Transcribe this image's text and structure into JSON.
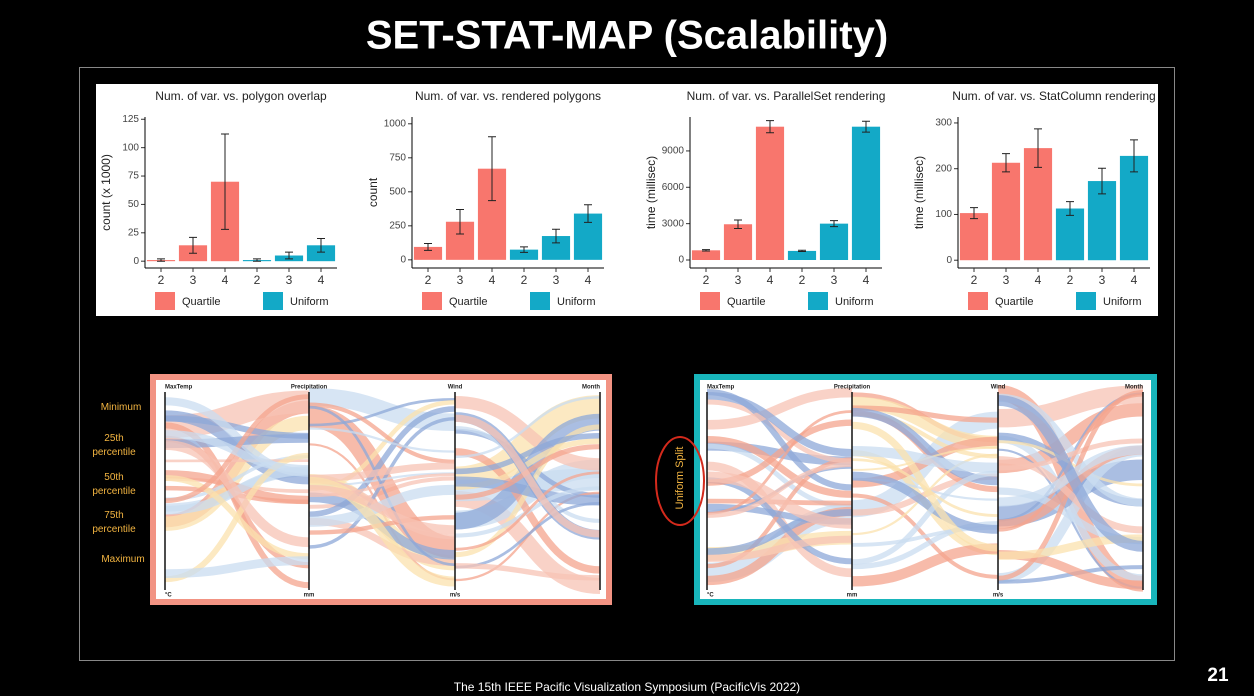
{
  "slide": {
    "title": "SET-STAT-MAP (Scalability)",
    "footer": "The 15th IEEE Pacific Visualization Symposium (PacificVis 2022)",
    "page_number": 21
  },
  "chart_data": [
    {
      "type": "bar",
      "title": "Num. of var. vs. polygon overlap",
      "y_label": "count (x 1000)",
      "categories": [
        "2",
        "3",
        "4"
      ],
      "series": [
        {
          "name": "Quartile",
          "color": "#f8766d",
          "values": [
            1,
            14,
            70
          ],
          "errors": [
            1,
            7,
            42
          ]
        },
        {
          "name": "Uniform",
          "color": "#13a9c7",
          "values": [
            1,
            5,
            14
          ],
          "errors": [
            1,
            3,
            6
          ]
        }
      ],
      "ylim": [
        -6,
        127
      ],
      "yticks": [
        0,
        25,
        50,
        75,
        100,
        125
      ]
    },
    {
      "type": "bar",
      "title": "Num. of var. vs. rendered polygons",
      "y_label": "count",
      "categories": [
        "2",
        "3",
        "4"
      ],
      "series": [
        {
          "name": "Quartile",
          "color": "#f8766d",
          "values": [
            95,
            280,
            670
          ],
          "errors": [
            25,
            90,
            235
          ]
        },
        {
          "name": "Uniform",
          "color": "#13a9c7",
          "values": [
            75,
            175,
            340
          ],
          "errors": [
            20,
            50,
            65
          ]
        }
      ],
      "ylim": [
        -60,
        1050
      ],
      "yticks": [
        0,
        250,
        500,
        750,
        1000
      ]
    },
    {
      "type": "bar",
      "title": "Num. of var. vs. ParallelSet rendering",
      "y_label": "time (millisec)",
      "categories": [
        "2",
        "3",
        "4"
      ],
      "series": [
        {
          "name": "Quartile",
          "color": "#f8766d",
          "values": [
            800,
            2950,
            11000
          ],
          "errors": [
            60,
            350,
            500
          ]
        },
        {
          "name": "Uniform",
          "color": "#13a9c7",
          "values": [
            750,
            3000,
            11000
          ],
          "errors": [
            50,
            250,
            450
          ]
        }
      ],
      "ylim": [
        -660,
        11800
      ],
      "yticks": [
        0,
        3000,
        6000,
        9000
      ]
    },
    {
      "type": "bar",
      "title": "Num. of var. vs. StatColumn rendering",
      "y_label": "time (millisec)",
      "categories": [
        "2",
        "3",
        "4"
      ],
      "series": [
        {
          "name": "Quartile",
          "color": "#f8766d",
          "values": [
            103,
            213,
            245
          ],
          "errors": [
            12,
            20,
            42
          ]
        },
        {
          "name": "Uniform",
          "color": "#13a9c7",
          "values": [
            113,
            173,
            228
          ],
          "errors": [
            15,
            28,
            35
          ]
        }
      ],
      "ylim": [
        -17,
        313
      ],
      "yticks": [
        0,
        100,
        200,
        300
      ]
    }
  ],
  "parallel_sets": {
    "quantile_labels": [
      "Minimum",
      "25th percentile",
      "50th percentile",
      "75th percentile",
      "Maximum"
    ],
    "axes": [
      "MaxTemp",
      "Precipitation",
      "Wind",
      "Month"
    ],
    "units": [
      "°C",
      "mm",
      "m/s"
    ],
    "annotation": "Uniform Split"
  }
}
